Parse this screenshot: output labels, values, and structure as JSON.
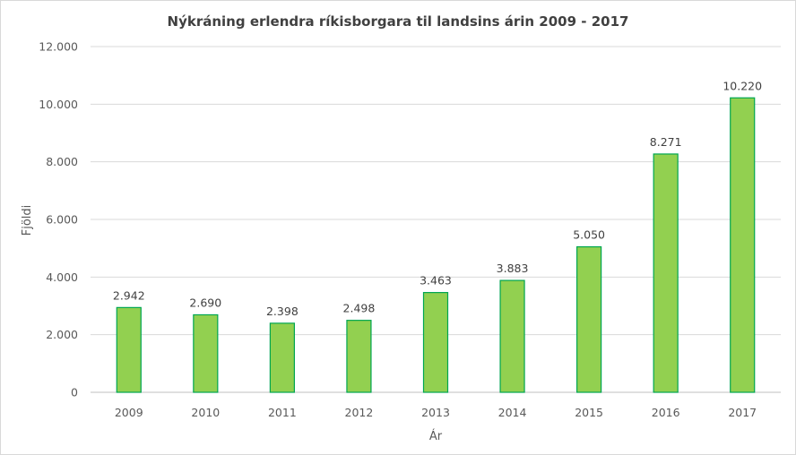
{
  "chart_data": {
    "type": "bar",
    "title": "Nýkráning erlendra ríkisborgara til landsins árin 2009 - 2017",
    "xlabel": "Ár",
    "ylabel": "Fjöldi",
    "categories": [
      "2009",
      "2010",
      "2011",
      "2012",
      "2013",
      "2014",
      "2015",
      "2016",
      "2017"
    ],
    "values": [
      2942,
      2690,
      2398,
      2498,
      3463,
      3883,
      5050,
      8271,
      10220
    ],
    "data_labels": [
      "2.942",
      "2.690",
      "2.398",
      "2.498",
      "3.463",
      "3.883",
      "5.050",
      "8.271",
      "10.220"
    ],
    "ylim": [
      0,
      12000
    ],
    "yticks": [
      0,
      2000,
      4000,
      6000,
      8000,
      10000,
      12000
    ],
    "ytick_labels": [
      "0",
      "2.000",
      "4.000",
      "6.000",
      "8.000",
      "10.000",
      "12.000"
    ],
    "grid": true,
    "legend": "none",
    "colors": {
      "bar_fill": "#92d050",
      "bar_stroke": "#00a651"
    }
  }
}
